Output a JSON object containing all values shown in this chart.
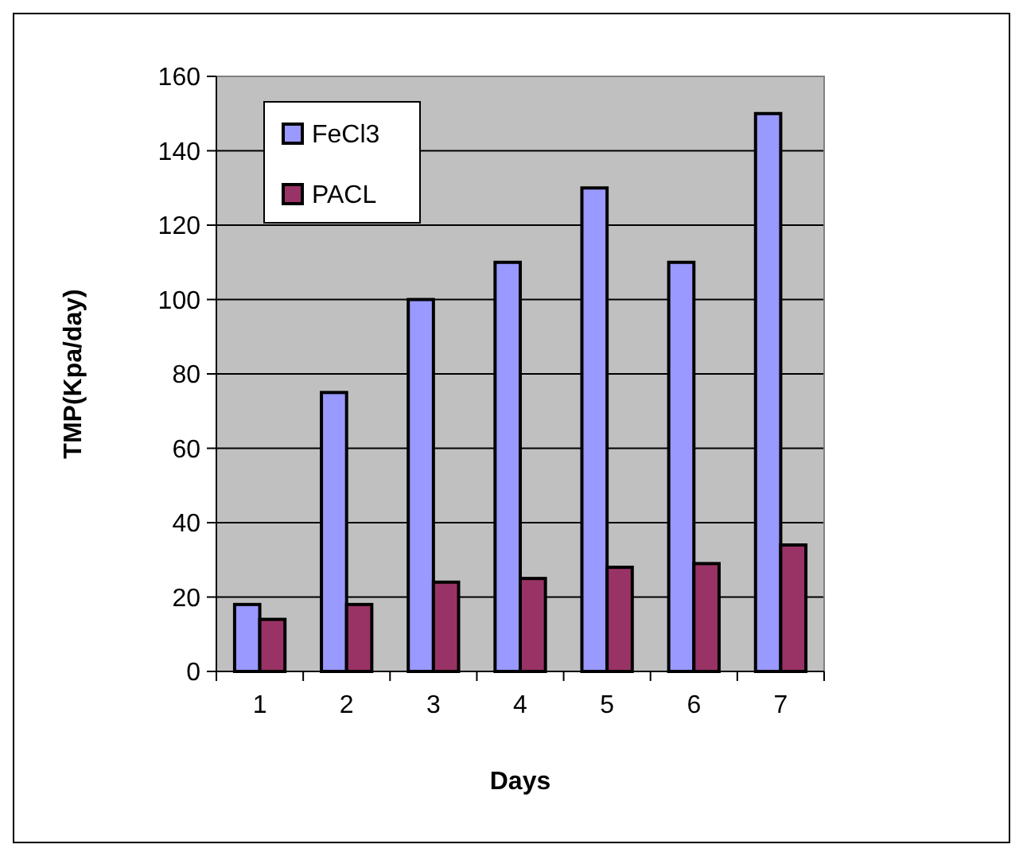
{
  "chart_data": {
    "type": "bar",
    "xlabel": "Days",
    "ylabel": "TMP(Kpa/day)",
    "categories": [
      "1",
      "2",
      "3",
      "4",
      "5",
      "6",
      "7"
    ],
    "series": [
      {
        "name": "FeCl3",
        "color": "#9999ff",
        "values": [
          18,
          75,
          100,
          110,
          130,
          110,
          150
        ]
      },
      {
        "name": "PACL",
        "color": "#993366",
        "values": [
          14,
          18,
          24,
          25,
          28,
          29,
          34
        ]
      }
    ],
    "ylim": [
      0,
      160
    ],
    "yticks": [
      0,
      20,
      40,
      60,
      80,
      100,
      120,
      140,
      160
    ],
    "grid": "y",
    "legend": "top left"
  }
}
